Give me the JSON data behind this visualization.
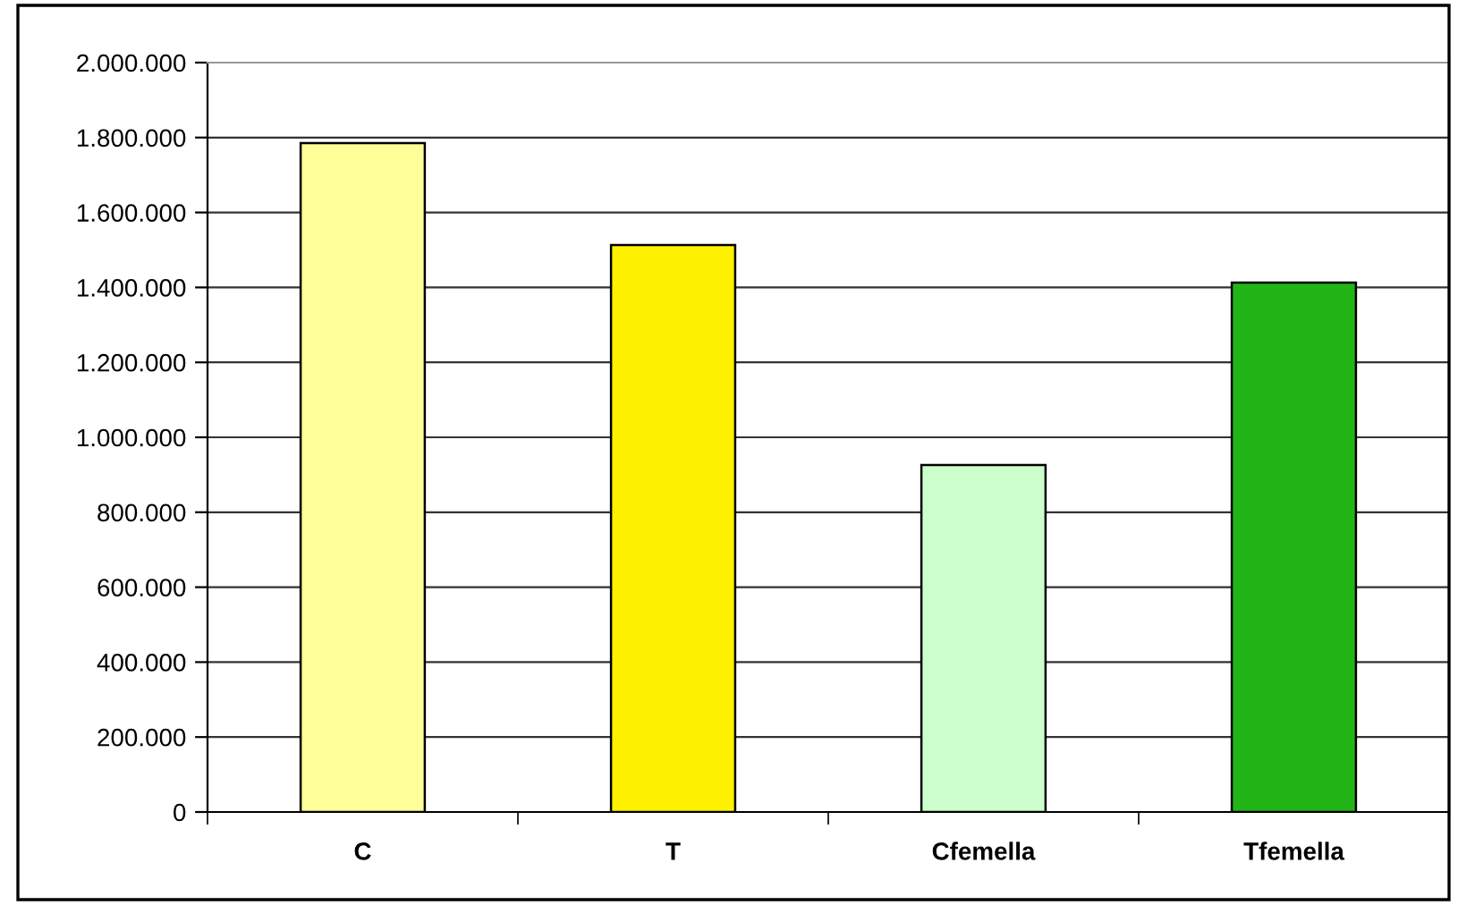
{
  "chart_data": {
    "type": "bar",
    "categories": [
      "C",
      "T",
      "Cfemella",
      "Tfemella"
    ],
    "values": [
      1785000,
      1513000,
      926000,
      1413000
    ],
    "colors": [
      "#ffff99",
      "#fff200",
      "#ccffcc",
      "#22b517"
    ],
    "ylim": [
      0,
      2000000
    ],
    "yticks": [
      {
        "value": 0,
        "label": "0"
      },
      {
        "value": 200000,
        "label": "200.000"
      },
      {
        "value": 400000,
        "label": "400.000"
      },
      {
        "value": 600000,
        "label": "600.000"
      },
      {
        "value": 800000,
        "label": "800.000"
      },
      {
        "value": 1000000,
        "label": "1.000.000"
      },
      {
        "value": 1200000,
        "label": "1.200.000"
      },
      {
        "value": 1400000,
        "label": "1.400.000"
      },
      {
        "value": 1600000,
        "label": "1.600.000"
      },
      {
        "value": 1800000,
        "label": "1.800.000"
      },
      {
        "value": 2000000,
        "label": "2.000.000"
      }
    ],
    "grid": "y",
    "legend": false
  }
}
